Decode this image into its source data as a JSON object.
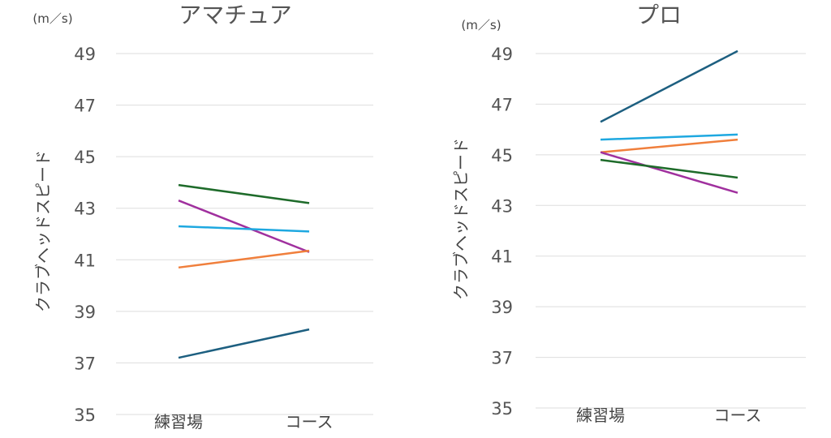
{
  "chart_data": [
    {
      "type": "line",
      "title": "アマチュア",
      "unit": "(m／s)",
      "ylabel": "クラブヘッドスピード",
      "categories": [
        "練習場",
        "コース"
      ],
      "ylim": [
        35,
        49
      ],
      "yticks": [
        35,
        37,
        39,
        41,
        43,
        45,
        47,
        49
      ],
      "grid": true,
      "series": [
        {
          "color": "#1e6b2a",
          "values": [
            43.9,
            43.2
          ]
        },
        {
          "color": "#a0309e",
          "values": [
            43.3,
            41.3
          ]
        },
        {
          "color": "#1ea8e0",
          "values": [
            42.3,
            42.1
          ]
        },
        {
          "color": "#f07f3c",
          "values": [
            40.7,
            41.35
          ]
        },
        {
          "color": "#1d5f80",
          "values": [
            37.2,
            38.3
          ]
        }
      ]
    },
    {
      "type": "line",
      "title": "プロ",
      "unit": "(m／s)",
      "ylabel": "クラブヘッドスピード",
      "categories": [
        "練習場",
        "コース"
      ],
      "ylim": [
        35,
        49
      ],
      "yticks": [
        35,
        37,
        39,
        41,
        43,
        45,
        47,
        49
      ],
      "grid": true,
      "series": [
        {
          "color": "#1d5f80",
          "values": [
            46.3,
            49.1
          ]
        },
        {
          "color": "#1ea8e0",
          "values": [
            45.6,
            45.8
          ]
        },
        {
          "color": "#f07f3c",
          "values": [
            45.1,
            45.6
          ]
        },
        {
          "color": "#a0309e",
          "values": [
            45.1,
            43.5
          ]
        },
        {
          "color": "#1e6b2a",
          "values": [
            44.8,
            44.1
          ]
        }
      ]
    }
  ]
}
